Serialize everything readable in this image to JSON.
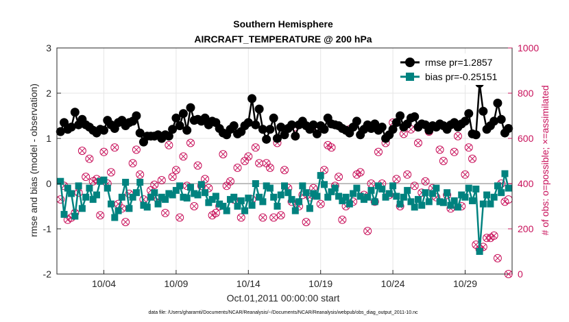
{
  "chart_data": {
    "type": "line",
    "title": "Southern Hemisphere",
    "subtitle": "AIRCRAFT_TEMPERATURE @ 200 hPa",
    "xlabel": "Oct.01,2011 00:00:00 start",
    "ylabel": "rmse and bias (model - observation)",
    "ylabel_right": "# of obs: o=possible; ×=assimilated",
    "footnote": "data file: /Users/gharamti/Documents/NCAR/Reanalysis/~/Documents/NCAR/Reanalysis/webpub/obs_diag_output_2011-10.nc",
    "xlim": [
      0.75,
      32.25
    ],
    "ylim": [
      -2,
      3
    ],
    "ylim_right": [
      0,
      1000
    ],
    "x_ticks": [
      {
        "x": 4,
        "label": "10/04"
      },
      {
        "x": 9,
        "label": "10/09"
      },
      {
        "x": 14,
        "label": "10/14"
      },
      {
        "x": 19,
        "label": "10/19"
      },
      {
        "x": 24,
        "label": "10/24"
      },
      {
        "x": 29,
        "label": "10/29"
      }
    ],
    "y_ticks": [
      "-2",
      "-1",
      "0",
      "1",
      "2",
      "3"
    ],
    "y_ticks_right": [
      "0",
      "200",
      "400",
      "600",
      "800",
      "1000"
    ],
    "grid": true,
    "legend_position": "top-right",
    "colors": {
      "rmse": "#000000",
      "bias": "#00827f",
      "obs": "#c8105a",
      "zero": "#bfbfbf"
    },
    "x": [
      1.0,
      1.25,
      1.5,
      1.75,
      2.0,
      2.25,
      2.5,
      2.75,
      3.0,
      3.25,
      3.5,
      3.75,
      4.0,
      4.25,
      4.5,
      4.75,
      5.0,
      5.25,
      5.5,
      5.75,
      6.0,
      6.25,
      6.5,
      6.75,
      7.0,
      7.25,
      7.5,
      7.75,
      8.0,
      8.25,
      8.5,
      8.75,
      9.0,
      9.25,
      9.5,
      9.75,
      10.0,
      10.25,
      10.5,
      10.75,
      11.0,
      11.25,
      11.5,
      11.75,
      12.0,
      12.25,
      12.5,
      12.75,
      13.0,
      13.25,
      13.5,
      13.75,
      14.0,
      14.25,
      14.5,
      14.75,
      15.0,
      15.25,
      15.5,
      15.75,
      16.0,
      16.25,
      16.5,
      16.75,
      17.0,
      17.25,
      17.5,
      17.75,
      18.0,
      18.25,
      18.5,
      18.75,
      19.0,
      19.25,
      19.5,
      19.75,
      20.0,
      20.25,
      20.5,
      20.75,
      21.0,
      21.25,
      21.5,
      21.75,
      22.0,
      22.25,
      22.5,
      22.75,
      23.0,
      23.25,
      23.5,
      23.75,
      24.0,
      24.25,
      24.5,
      24.75,
      25.0,
      25.25,
      25.5,
      25.75,
      26.0,
      26.25,
      26.5,
      26.75,
      27.0,
      27.25,
      27.5,
      27.75,
      28.0,
      28.25,
      28.5,
      28.75,
      29.0,
      29.25,
      29.5,
      29.75,
      30.0,
      30.25,
      30.5,
      30.75,
      31.0,
      31.25,
      31.5,
      31.75,
      32.0
    ],
    "series": [
      {
        "name": "rmse pr=1.2857",
        "marker": "circle",
        "values": [
          1.15,
          1.35,
          1.2,
          1.25,
          1.58,
          1.3,
          1.42,
          1.3,
          1.25,
          1.18,
          1.12,
          1.2,
          1.18,
          1.4,
          1.3,
          1.22,
          1.35,
          1.4,
          1.28,
          1.35,
          1.38,
          1.5,
          1.12,
          0.92,
          1.05,
          1.05,
          1.05,
          1.08,
          1.0,
          1.08,
          1.05,
          1.2,
          1.45,
          1.28,
          1.55,
          1.18,
          1.68,
          1.4,
          1.42,
          1.38,
          1.45,
          1.3,
          1.38,
          1.35,
          1.22,
          1.12,
          1.08,
          1.2,
          1.28,
          1.1,
          1.15,
          1.28,
          1.35,
          1.88,
          1.3,
          1.65,
          1.2,
          0.98,
          1.2,
          1.45,
          1.0,
          1.25,
          1.08,
          1.22,
          1.3,
          1.05,
          1.3,
          1.38,
          1.28,
          1.2,
          1.3,
          1.1,
          1.28,
          1.2,
          1.45,
          1.32,
          1.3,
          1.28,
          1.22,
          1.18,
          1.12,
          1.25,
          1.38,
          1.08,
          1.2,
          1.3,
          1.22,
          1.32,
          1.18,
          1.25,
          1.0,
          1.08,
          1.2,
          1.35,
          1.5,
          1.25,
          1.32,
          1.45,
          1.48,
          1.25,
          1.32,
          1.3,
          1.18,
          1.28,
          1.25,
          1.32,
          1.28,
          1.2,
          1.3,
          1.35,
          1.25,
          1.32,
          1.38,
          1.55,
          1.1,
          1.08,
          2.22,
          1.6,
          1.2,
          1.28,
          1.38,
          1.78,
          1.42,
          1.12,
          1.22
        ]
      },
      {
        "name": "bias pr=-0.25151",
        "marker": "square",
        "values": [
          0.05,
          -0.68,
          -0.1,
          -0.22,
          -0.72,
          -0.05,
          -0.55,
          -0.3,
          -0.1,
          -0.35,
          -0.25,
          0.05,
          0.08,
          -0.1,
          -0.45,
          -0.75,
          -0.6,
          -0.3,
          0.03,
          -0.55,
          -0.3,
          -0.2,
          0.03,
          -0.48,
          -0.52,
          -0.3,
          -0.2,
          -0.45,
          -0.3,
          -0.35,
          -0.22,
          -0.25,
          -0.15,
          -0.05,
          -0.3,
          -0.32,
          -0.08,
          -0.22,
          -0.25,
          -0.02,
          -0.2,
          -0.42,
          -0.35,
          -0.28,
          -0.45,
          -0.5,
          -0.6,
          -0.35,
          -0.3,
          -0.5,
          -0.38,
          -0.6,
          -0.32,
          -0.48,
          0.0,
          -0.3,
          -0.4,
          -0.05,
          -0.1,
          -0.3,
          -0.5,
          -0.25,
          -0.05,
          -0.2,
          -0.35,
          -0.6,
          -0.4,
          -0.05,
          -0.2,
          -0.55,
          -0.22,
          -0.28,
          0.18,
          -0.02,
          -0.3,
          -0.18,
          -0.1,
          -0.28,
          -0.38,
          -0.3,
          -0.45,
          -0.22,
          -0.1,
          -0.28,
          -0.35,
          -0.3,
          -0.15,
          -0.4,
          -0.05,
          -0.12,
          -0.3,
          -0.22,
          -0.05,
          -0.28,
          -0.45,
          -0.3,
          -0.15,
          -0.4,
          -0.52,
          -0.35,
          -0.48,
          -0.2,
          -0.4,
          -0.22,
          -0.1,
          -0.4,
          -0.42,
          -0.2,
          -0.48,
          -0.38,
          -0.52,
          -0.25,
          -0.3,
          -0.1,
          -0.38,
          -0.12,
          -1.5,
          -0.45,
          -0.25,
          -0.45,
          -0.3,
          -0.05,
          -0.2,
          0.22,
          -0.1
        ]
      },
      {
        "name": "obs possible",
        "axis": "right",
        "marker": "circle-open",
        "values": [
          330,
          390,
          240,
          250,
          270,
          360,
          545,
          430,
          510,
          410,
          420,
          260,
          540,
          400,
          450,
          560,
          310,
          290,
          230,
          355,
          490,
          550,
          440,
          330,
          610,
          370,
          395,
          330,
          415,
          270,
          570,
          430,
          460,
          250,
          520,
          390,
          580,
          300,
          480,
          390,
          420,
          380,
          260,
          270,
          300,
          530,
          390,
          410,
          330,
          470,
          250,
          500,
          520,
          330,
          560,
          490,
          250,
          490,
          470,
          250,
          580,
          260,
          460,
          380,
          320,
          650,
          300,
          350,
          230,
          340,
          380,
          650,
          310,
          460,
          570,
          560,
          390,
          430,
          240,
          300,
          640,
          320,
          440,
          450,
          350,
          190,
          400,
          320,
          540,
          400,
          580,
          350,
          670,
          420,
          300,
          620,
          440,
          640,
          390,
          580,
          360,
          410,
          630,
          380,
          340,
          550,
          500,
          350,
          290,
          540,
          610,
          300,
          440,
          560,
          510,
          130,
          110,
          120,
          160,
          160,
          170,
          70,
          400,
          320,
          330
        ]
      },
      {
        "name": "obs assimilated",
        "axis": "right",
        "marker": "x",
        "values": [
          330,
          390,
          240,
          250,
          270,
          360,
          545,
          430,
          510,
          410,
          420,
          260,
          540,
          400,
          450,
          560,
          310,
          290,
          230,
          355,
          490,
          550,
          440,
          330,
          610,
          370,
          395,
          330,
          415,
          270,
          570,
          430,
          460,
          250,
          520,
          390,
          580,
          300,
          480,
          390,
          420,
          380,
          260,
          270,
          300,
          530,
          390,
          410,
          330,
          470,
          250,
          500,
          520,
          330,
          560,
          490,
          250,
          490,
          470,
          250,
          580,
          260,
          460,
          380,
          320,
          650,
          300,
          350,
          230,
          340,
          380,
          650,
          310,
          460,
          570,
          560,
          390,
          430,
          240,
          300,
          640,
          320,
          440,
          450,
          350,
          190,
          400,
          320,
          540,
          400,
          580,
          350,
          670,
          420,
          300,
          620,
          440,
          640,
          390,
          580,
          360,
          410,
          630,
          380,
          340,
          550,
          500,
          350,
          290,
          540,
          610,
          300,
          440,
          560,
          510,
          130,
          110,
          120,
          160,
          160,
          170,
          70,
          400,
          320,
          0
        ]
      }
    ]
  }
}
